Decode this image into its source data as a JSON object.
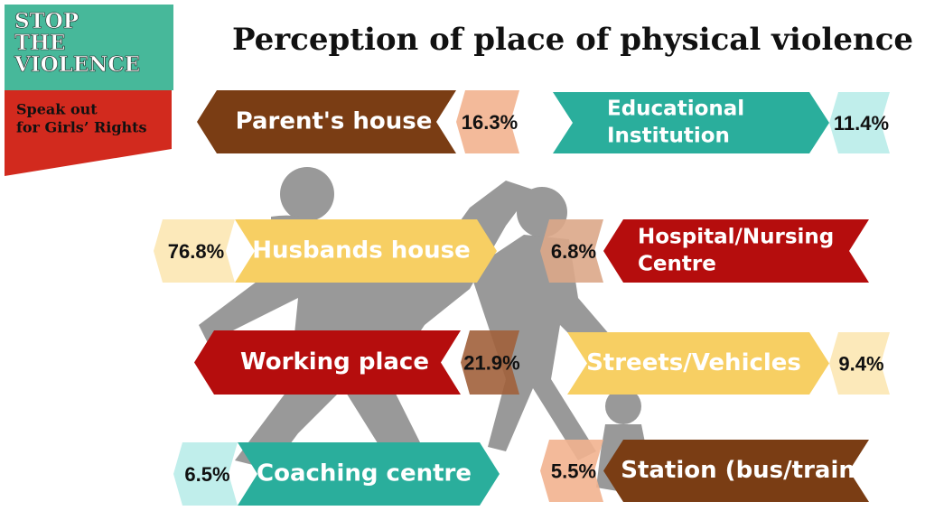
{
  "logo": {
    "lines": [
      "STOP",
      "THE",
      "VIOLENCE"
    ],
    "tagline": [
      "Speak out",
      "for Girls’ Rights"
    ]
  },
  "title": "Perception of place of physical violence",
  "items": [
    {
      "label": [
        "Parent's house"
      ],
      "value": "16.3%"
    },
    {
      "label": [
        "Educational",
        "Institution"
      ],
      "value": "11.4%"
    },
    {
      "label": [
        "Husbands house"
      ],
      "value": "76.8%"
    },
    {
      "label": [
        "Hospital/Nursing",
        "Centre"
      ],
      "value": "6.8%"
    },
    {
      "label": [
        "Working place"
      ],
      "value": "21.9%"
    },
    {
      "label": [
        "Streets/Vehicles"
      ],
      "value": "9.4%"
    },
    {
      "label": [
        "Coaching centre"
      ],
      "value": "6.5%"
    },
    {
      "label": [
        "Station (bus/train)"
      ],
      "value": "5.5%"
    }
  ]
}
